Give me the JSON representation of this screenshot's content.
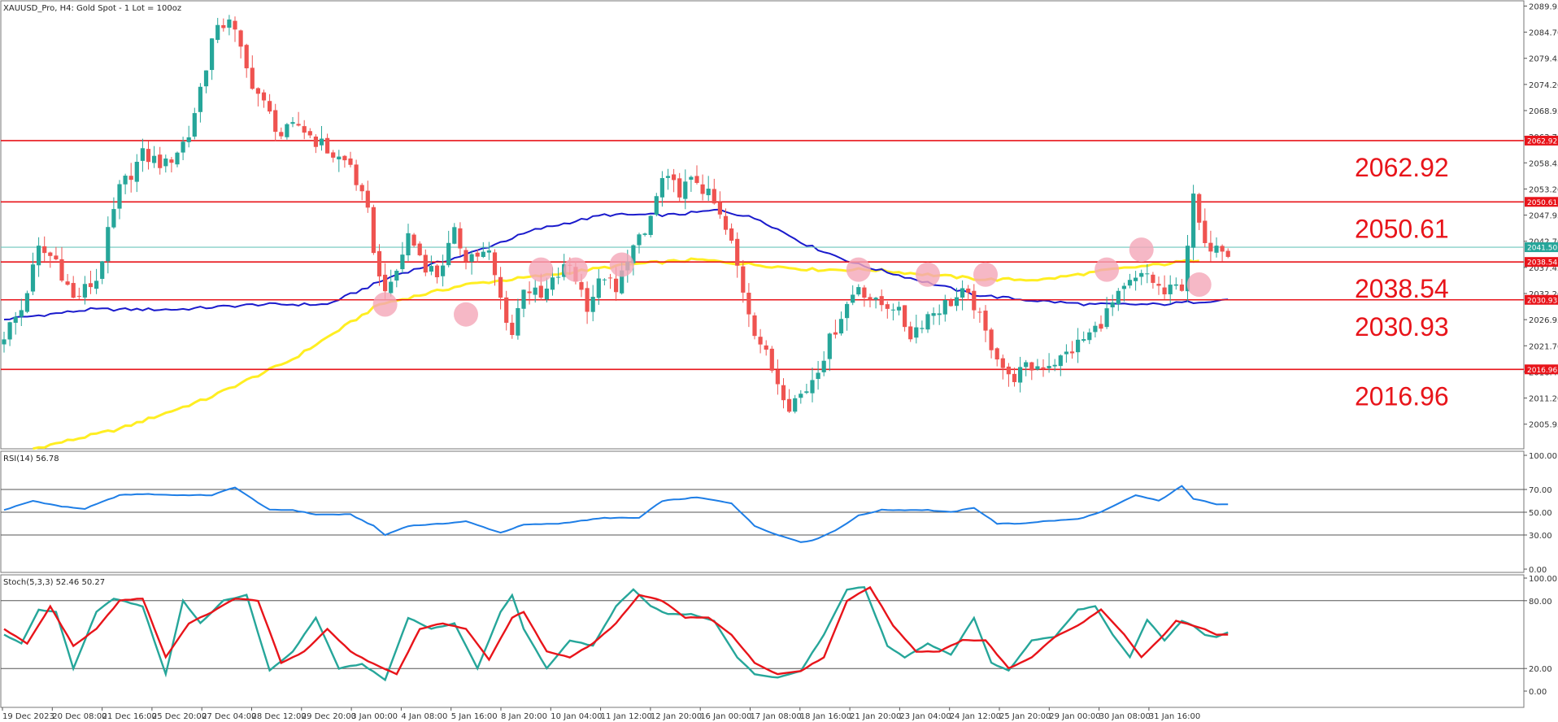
{
  "header": {
    "main": "XAUUSD_Pro, H4:  Gold  Spot - 1 Lot = 100oz",
    "rsi": "RSI(14) 56.78",
    "stoch": "Stoch(5,3,3) 52.46 50.27"
  },
  "colors": {
    "bull": "#26a69a",
    "bear": "#ef5350",
    "ma_fast": "#1a1acc",
    "ma_slow": "#ffee22",
    "level": "#e8141a",
    "current": "#6ec6be",
    "rsi": "#1e7ee6",
    "stoch_k": "#26a69a",
    "stoch_d": "#e8141a",
    "circles": "#f4a6b8"
  },
  "chart_data": [
    {
      "type": "candlestick",
      "symbol": "XAUUSD_Pro",
      "timeframe": "H4",
      "ylim": [
        2001.0,
        2091.0
      ],
      "y_ticks": [
        "2089.95",
        "2084.70",
        "2079.45",
        "2074.20",
        "2068.95",
        "2063.70",
        "2058.45",
        "2053.20",
        "2047.95",
        "2042.70",
        "2037.45",
        "2032.20",
        "2026.95",
        "2021.70",
        "2016.45",
        "2011.20",
        "2005.95"
      ],
      "x_ticks": [
        "19 Dec 2023",
        "20 Dec 08:00",
        "21 Dec 16:00",
        "25 Dec 20:00",
        "27 Dec 04:00",
        "28 Dec 12:00",
        "29 Dec 20:00",
        "3 Jan 00:00",
        "4 Jan 08:00",
        "5 Jan 16:00",
        "8 Jan 20:00",
        "10 Jan 04:00",
        "11 Jan 12:00",
        "12 Jan 20:00",
        "16 Jan 00:00",
        "17 Jan 08:00",
        "18 Jan 16:00",
        "21 Jan 20:00",
        "23 Jan 04:00",
        "24 Jan 12:00",
        "25 Jan 20:00",
        "29 Jan 00:00",
        "30 Jan 08:00",
        "31 Jan 16:00"
      ],
      "current_price": 2041.5,
      "current_price_label": "2041.50",
      "levels": [
        {
          "value": 2062.92,
          "tag": "2062.92",
          "label": "2062.92"
        },
        {
          "value": 2050.61,
          "tag": "2050.61",
          "label": "2050.61"
        },
        {
          "value": 2038.54,
          "tag": "2038.54",
          "label": "2038.54"
        },
        {
          "value": 2030.93,
          "tag": "2030.93",
          "label": "2030.93"
        },
        {
          "value": 2016.96,
          "tag": "2016.96",
          "label": "2016.96"
        }
      ],
      "close_anchors": [
        [
          0,
          2024
        ],
        [
          3,
          2029
        ],
        [
          6,
          2041
        ],
        [
          9,
          2039
        ],
        [
          12,
          2031
        ],
        [
          16,
          2035
        ],
        [
          20,
          2053
        ],
        [
          24,
          2060
        ],
        [
          28,
          2058
        ],
        [
          32,
          2064
        ],
        [
          36,
          2083
        ],
        [
          39,
          2088
        ],
        [
          42,
          2077
        ],
        [
          45,
          2070
        ],
        [
          48,
          2064
        ],
        [
          51,
          2066
        ],
        [
          54,
          2063
        ],
        [
          57,
          2060
        ],
        [
          60,
          2058
        ],
        [
          63,
          2048
        ],
        [
          65,
          2035
        ],
        [
          67,
          2033
        ],
        [
          70,
          2044
        ],
        [
          73,
          2038
        ],
        [
          75,
          2036
        ],
        [
          78,
          2044
        ],
        [
          80,
          2040
        ],
        [
          84,
          2040
        ],
        [
          86,
          2031
        ],
        [
          88,
          2024
        ],
        [
          90,
          2034
        ],
        [
          93,
          2031
        ],
        [
          96,
          2036
        ],
        [
          98,
          2038
        ],
        [
          101,
          2030
        ],
        [
          104,
          2036
        ],
        [
          106,
          2032
        ],
        [
          108,
          2040
        ],
        [
          111,
          2044
        ],
        [
          114,
          2055
        ],
        [
          117,
          2053
        ],
        [
          120,
          2055
        ],
        [
          123,
          2050
        ],
        [
          126,
          2042
        ],
        [
          128,
          2033
        ],
        [
          130,
          2025
        ],
        [
          133,
          2017
        ],
        [
          136,
          2010
        ],
        [
          139,
          2013
        ],
        [
          142,
          2020
        ],
        [
          145,
          2028
        ],
        [
          148,
          2034
        ],
        [
          151,
          2030
        ],
        [
          154,
          2030
        ],
        [
          157,
          2024
        ],
        [
          160,
          2028
        ],
        [
          163,
          2030
        ],
        [
          166,
          2032
        ],
        [
          168,
          2030
        ],
        [
          170,
          2024
        ],
        [
          172,
          2020
        ],
        [
          174,
          2015
        ],
        [
          177,
          2017
        ],
        [
          180,
          2018
        ],
        [
          183,
          2019
        ],
        [
          186,
          2022
        ],
        [
          189,
          2025
        ],
        [
          192,
          2030
        ],
        [
          195,
          2034
        ],
        [
          198,
          2036
        ],
        [
          201,
          2032
        ],
        [
          204,
          2034
        ],
        [
          206,
          2051
        ],
        [
          208,
          2041
        ],
        [
          210,
          2043
        ],
        [
          212,
          2041
        ]
      ],
      "ma_fast_anchors": [
        [
          0,
          2027
        ],
        [
          15,
          2029
        ],
        [
          30,
          2029
        ],
        [
          44,
          2030
        ],
        [
          56,
          2030
        ],
        [
          68,
          2036
        ],
        [
          80,
          2040
        ],
        [
          92,
          2045
        ],
        [
          104,
          2048
        ],
        [
          116,
          2048
        ],
        [
          124,
          2049
        ],
        [
          131,
          2047
        ],
        [
          139,
          2042
        ],
        [
          148,
          2038
        ],
        [
          158,
          2035
        ],
        [
          168,
          2032
        ],
        [
          176,
          2031
        ],
        [
          188,
          2030
        ],
        [
          200,
          2030
        ],
        [
          212,
          2031
        ]
      ],
      "ma_slow_anchors": [
        [
          5,
          2001
        ],
        [
          20,
          2005
        ],
        [
          35,
          2011
        ],
        [
          50,
          2019
        ],
        [
          65,
          2030
        ],
        [
          80,
          2034
        ],
        [
          95,
          2036
        ],
        [
          108,
          2038
        ],
        [
          120,
          2039
        ],
        [
          130,
          2038
        ],
        [
          140,
          2037
        ],
        [
          150,
          2037
        ],
        [
          160,
          2036
        ],
        [
          170,
          2035
        ],
        [
          180,
          2035
        ],
        [
          192,
          2037
        ],
        [
          200,
          2038
        ],
        [
          207,
          2039
        ]
      ],
      "circles": [
        [
          66,
          2030
        ],
        [
          80,
          2028
        ],
        [
          93,
          2037
        ],
        [
          99,
          2037
        ],
        [
          107,
          2038
        ],
        [
          148,
          2037
        ],
        [
          160,
          2036
        ],
        [
          170,
          2036
        ],
        [
          191,
          2037
        ],
        [
          197,
          2041
        ],
        [
          207,
          2034
        ]
      ]
    },
    {
      "type": "line",
      "name": "RSI(14)",
      "ylim": [
        0,
        100
      ],
      "y_ticks": [
        "100.00",
        "70.00",
        "50.00",
        "30.00",
        "0.00"
      ],
      "levels": [
        70,
        50,
        30
      ],
      "last_value": 56.78,
      "anchors": [
        [
          0,
          52
        ],
        [
          5,
          60
        ],
        [
          10,
          55
        ],
        [
          14,
          53
        ],
        [
          20,
          65
        ],
        [
          24,
          66
        ],
        [
          30,
          65
        ],
        [
          36,
          65
        ],
        [
          40,
          72
        ],
        [
          42,
          65
        ],
        [
          46,
          52
        ],
        [
          50,
          52
        ],
        [
          54,
          48
        ],
        [
          60,
          48
        ],
        [
          64,
          38
        ],
        [
          66,
          30
        ],
        [
          70,
          38
        ],
        [
          76,
          40
        ],
        [
          80,
          42
        ],
        [
          86,
          32
        ],
        [
          90,
          39
        ],
        [
          96,
          40
        ],
        [
          104,
          45
        ],
        [
          110,
          45
        ],
        [
          114,
          60
        ],
        [
          120,
          63
        ],
        [
          126,
          58
        ],
        [
          130,
          38
        ],
        [
          134,
          30
        ],
        [
          138,
          24
        ],
        [
          140,
          25
        ],
        [
          144,
          34
        ],
        [
          148,
          47
        ],
        [
          152,
          52
        ],
        [
          156,
          52
        ],
        [
          160,
          52
        ],
        [
          164,
          50
        ],
        [
          168,
          54
        ],
        [
          172,
          40
        ],
        [
          176,
          40
        ],
        [
          180,
          42
        ],
        [
          186,
          44
        ],
        [
          190,
          50
        ],
        [
          196,
          65
        ],
        [
          200,
          60
        ],
        [
          204,
          73
        ],
        [
          206,
          62
        ],
        [
          208,
          60
        ],
        [
          210,
          57
        ],
        [
          212,
          57
        ]
      ]
    },
    {
      "type": "line",
      "name": "Stoch(5,3,3)",
      "ylim": [
        0,
        100
      ],
      "y_ticks": [
        "100.00",
        "80.00",
        "20.00",
        "0.00"
      ],
      "levels": [
        80,
        20
      ],
      "k_value": 52.46,
      "d_value": 50.27,
      "k_anchors": [
        [
          0,
          50
        ],
        [
          3,
          42
        ],
        [
          6,
          72
        ],
        [
          9,
          70
        ],
        [
          12,
          20
        ],
        [
          16,
          70
        ],
        [
          19,
          82
        ],
        [
          24,
          75
        ],
        [
          28,
          15
        ],
        [
          31,
          80
        ],
        [
          34,
          60
        ],
        [
          38,
          80
        ],
        [
          42,
          85
        ],
        [
          46,
          18
        ],
        [
          50,
          35
        ],
        [
          54,
          65
        ],
        [
          58,
          20
        ],
        [
          62,
          24
        ],
        [
          66,
          10
        ],
        [
          70,
          65
        ],
        [
          74,
          55
        ],
        [
          78,
          60
        ],
        [
          82,
          20
        ],
        [
          86,
          70
        ],
        [
          88,
          85
        ],
        [
          90,
          55
        ],
        [
          94,
          20
        ],
        [
          98,
          45
        ],
        [
          102,
          40
        ],
        [
          106,
          75
        ],
        [
          109,
          90
        ],
        [
          112,
          75
        ],
        [
          115,
          68
        ],
        [
          119,
          68
        ],
        [
          123,
          62
        ],
        [
          127,
          30
        ],
        [
          130,
          15
        ],
        [
          134,
          12
        ],
        [
          138,
          18
        ],
        [
          142,
          50
        ],
        [
          146,
          90
        ],
        [
          149,
          92
        ],
        [
          153,
          40
        ],
        [
          156,
          30
        ],
        [
          160,
          42
        ],
        [
          164,
          32
        ],
        [
          168,
          65
        ],
        [
          171,
          25
        ],
        [
          174,
          18
        ],
        [
          178,
          45
        ],
        [
          182,
          48
        ],
        [
          186,
          72
        ],
        [
          189,
          75
        ],
        [
          192,
          50
        ],
        [
          195,
          30
        ],
        [
          198,
          63
        ],
        [
          201,
          45
        ],
        [
          204,
          62
        ],
        [
          206,
          58
        ],
        [
          208,
          50
        ],
        [
          210,
          48
        ],
        [
          212,
          52
        ]
      ],
      "d_anchors": [
        [
          0,
          55
        ],
        [
          4,
          42
        ],
        [
          8,
          75
        ],
        [
          12,
          40
        ],
        [
          16,
          55
        ],
        [
          20,
          80
        ],
        [
          24,
          82
        ],
        [
          28,
          30
        ],
        [
          32,
          60
        ],
        [
          36,
          70
        ],
        [
          40,
          82
        ],
        [
          44,
          80
        ],
        [
          48,
          25
        ],
        [
          52,
          35
        ],
        [
          56,
          55
        ],
        [
          60,
          35
        ],
        [
          64,
          24
        ],
        [
          68,
          15
        ],
        [
          72,
          55
        ],
        [
          76,
          60
        ],
        [
          80,
          55
        ],
        [
          84,
          28
        ],
        [
          88,
          65
        ],
        [
          90,
          70
        ],
        [
          94,
          35
        ],
        [
          98,
          30
        ],
        [
          102,
          42
        ],
        [
          106,
          60
        ],
        [
          110,
          85
        ],
        [
          114,
          80
        ],
        [
          118,
          65
        ],
        [
          122,
          65
        ],
        [
          126,
          50
        ],
        [
          130,
          25
        ],
        [
          134,
          15
        ],
        [
          138,
          18
        ],
        [
          142,
          30
        ],
        [
          146,
          80
        ],
        [
          150,
          92
        ],
        [
          154,
          58
        ],
        [
          158,
          35
        ],
        [
          162,
          35
        ],
        [
          166,
          45
        ],
        [
          170,
          45
        ],
        [
          174,
          20
        ],
        [
          178,
          30
        ],
        [
          182,
          48
        ],
        [
          186,
          58
        ],
        [
          190,
          72
        ],
        [
          194,
          50
        ],
        [
          197,
          30
        ],
        [
          200,
          45
        ],
        [
          203,
          62
        ],
        [
          206,
          58
        ],
        [
          208,
          55
        ],
        [
          210,
          50
        ],
        [
          212,
          50
        ]
      ]
    }
  ]
}
